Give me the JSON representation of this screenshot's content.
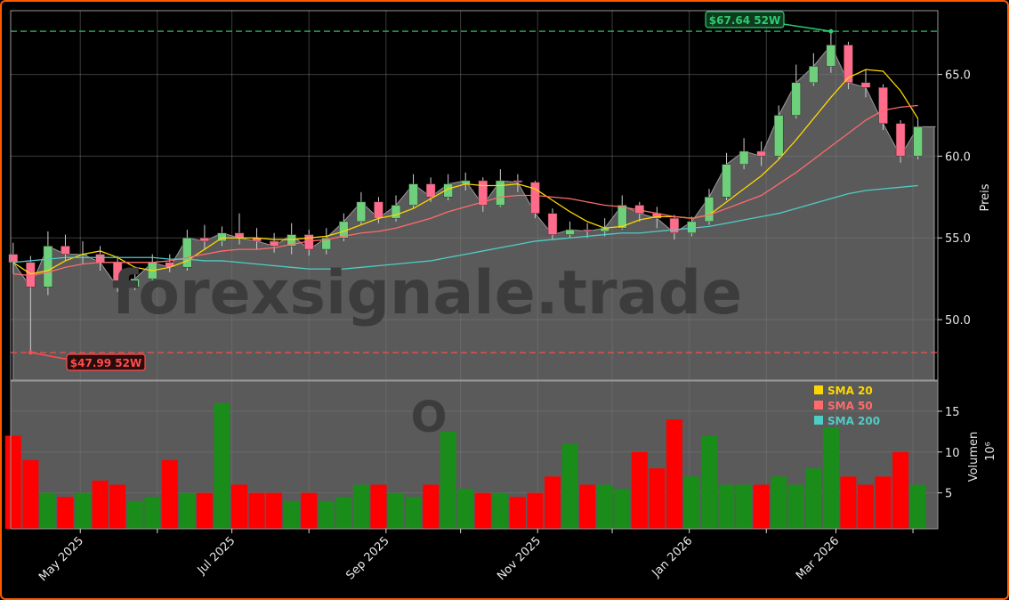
{
  "chart_data": {
    "type": "candlestick",
    "ticker_watermark": "O",
    "watermark": "forexsignale.trade",
    "price_axis": {
      "label": "Preis",
      "ticks": [
        50.0,
        55.0,
        60.0,
        65.0
      ],
      "tick_labels": [
        "50.0",
        "55.0",
        "60.0",
        "65.0"
      ],
      "ylim": [
        46.3,
        68.9
      ]
    },
    "volume_axis": {
      "label": "Volumen",
      "scale_label": "10⁶",
      "ticks": [
        5,
        10,
        15
      ],
      "tick_labels": [
        "5",
        "10",
        "15"
      ],
      "ylim": [
        0.6,
        18.7
      ]
    },
    "x_axis": {
      "tick_labels": [
        "May 2025",
        "Jul 2025",
        "Sep 2025",
        "Nov 2025",
        "Jan 2026",
        "Mar 2026"
      ],
      "tick_dates": [
        "2025-05-01",
        "2025-07-01",
        "2025-09-01",
        "2025-11-01",
        "2026-01-01",
        "2026-03-01"
      ],
      "minor_tick_dates": [
        "2025-06-01",
        "2025-08-01",
        "2025-10-01",
        "2025-12-01",
        "2026-02-01",
        "2026-04-01"
      ],
      "xlim": [
        "2025-04-03",
        "2026-04-11"
      ]
    },
    "grid": true,
    "high_52w": {
      "value": 67.64,
      "label": "$67.64 52W",
      "date": "2026-02-27",
      "color": "#2ecc71"
    },
    "low_52w": {
      "value": 47.99,
      "label": "$47.99 52W",
      "date": "2025-04-11",
      "color": "#ff4d4d"
    },
    "legend": {
      "placement": "top-right of volume panel",
      "items": [
        {
          "label": "SMA 20",
          "color": "#ffd700"
        },
        {
          "label": "SMA 50",
          "color": "#ff6b6b"
        },
        {
          "label": "SMA 200",
          "color": "#4ecdc4"
        }
      ]
    },
    "colors": {
      "up_candle": "#6fd07c",
      "down_candle": "#ff6b8a",
      "up_volume": "#1a8c1a",
      "down_volume": "#ff0000",
      "area_fill": "#5a5a5a",
      "background": "#000000",
      "frame": "#ff5a00"
    },
    "dates": [
      "2025-04-04",
      "2025-04-11",
      "2025-04-18",
      "2025-04-25",
      "2025-05-02",
      "2025-05-09",
      "2025-05-16",
      "2025-05-23",
      "2025-05-30",
      "2025-06-06",
      "2025-06-13",
      "2025-06-20",
      "2025-06-27",
      "2025-07-04",
      "2025-07-11",
      "2025-07-18",
      "2025-07-25",
      "2025-08-01",
      "2025-08-08",
      "2025-08-15",
      "2025-08-22",
      "2025-08-29",
      "2025-09-05",
      "2025-09-12",
      "2025-09-19",
      "2025-09-26",
      "2025-10-03",
      "2025-10-10",
      "2025-10-17",
      "2025-10-24",
      "2025-10-31",
      "2025-11-07",
      "2025-11-14",
      "2025-11-21",
      "2025-11-28",
      "2025-12-05",
      "2025-12-12",
      "2025-12-19",
      "2025-12-26",
      "2026-01-02",
      "2026-01-09",
      "2026-01-16",
      "2026-01-23",
      "2026-01-30",
      "2026-02-06",
      "2026-02-13",
      "2026-02-20",
      "2026-02-27",
      "2026-03-06",
      "2026-03-13",
      "2026-03-20",
      "2026-03-27",
      "2026-04-03"
    ],
    "ohlc": [
      [
        54.0,
        54.7,
        52.8,
        53.5
      ],
      [
        53.5,
        53.9,
        47.99,
        52.0
      ],
      [
        52.0,
        55.4,
        51.5,
        54.5
      ],
      [
        54.5,
        55.2,
        53.6,
        54.0
      ],
      [
        54.0,
        54.8,
        53.4,
        54.0
      ],
      [
        54.0,
        54.5,
        53.0,
        53.5
      ],
      [
        53.5,
        53.9,
        51.7,
        52.0
      ],
      [
        52.0,
        53.2,
        51.8,
        52.5
      ],
      [
        52.5,
        54.0,
        52.2,
        53.5
      ],
      [
        53.5,
        54.0,
        52.9,
        53.2
      ],
      [
        53.2,
        55.5,
        53.0,
        55.0
      ],
      [
        55.0,
        55.8,
        54.3,
        54.8
      ],
      [
        54.8,
        55.7,
        54.5,
        55.3
      ],
      [
        55.3,
        56.5,
        54.6,
        55.0
      ],
      [
        55.0,
        55.6,
        54.3,
        54.8
      ],
      [
        54.8,
        55.3,
        54.1,
        54.5
      ],
      [
        54.5,
        55.9,
        54.0,
        55.2
      ],
      [
        55.2,
        55.5,
        53.9,
        54.3
      ],
      [
        54.3,
        55.6,
        54.0,
        55.0
      ],
      [
        55.0,
        56.5,
        54.8,
        56.0
      ],
      [
        56.0,
        57.8,
        55.8,
        57.2
      ],
      [
        57.2,
        57.5,
        55.9,
        56.2
      ],
      [
        56.2,
        57.6,
        56.0,
        57.0
      ],
      [
        57.0,
        58.9,
        56.8,
        58.3
      ],
      [
        58.3,
        58.7,
        57.2,
        57.5
      ],
      [
        57.5,
        58.9,
        57.3,
        58.3
      ],
      [
        58.3,
        59.0,
        57.9,
        58.5
      ],
      [
        58.5,
        58.7,
        56.6,
        57.0
      ],
      [
        57.0,
        59.2,
        56.9,
        58.5
      ],
      [
        58.5,
        58.9,
        57.8,
        58.4
      ],
      [
        58.4,
        58.5,
        56.2,
        56.5
      ],
      [
        56.5,
        56.8,
        54.9,
        55.2
      ],
      [
        55.2,
        56.0,
        55.0,
        55.5
      ],
      [
        55.5,
        55.9,
        55.0,
        55.4
      ],
      [
        55.4,
        56.2,
        55.1,
        55.6
      ],
      [
        55.6,
        57.6,
        55.5,
        57.0
      ],
      [
        57.0,
        57.2,
        56.0,
        56.5
      ],
      [
        56.5,
        56.9,
        55.6,
        56.2
      ],
      [
        56.2,
        56.4,
        54.9,
        55.3
      ],
      [
        55.3,
        56.3,
        55.1,
        56.0
      ],
      [
        56.0,
        58.0,
        55.8,
        57.5
      ],
      [
        57.5,
        60.2,
        57.3,
        59.5
      ],
      [
        59.5,
        61.1,
        59.2,
        60.3
      ],
      [
        60.3,
        60.9,
        59.4,
        60.0
      ],
      [
        60.0,
        63.1,
        59.8,
        62.5
      ],
      [
        62.5,
        65.6,
        62.3,
        64.5
      ],
      [
        64.5,
        66.3,
        64.3,
        65.5
      ],
      [
        65.5,
        67.64,
        65.1,
        66.8
      ],
      [
        66.8,
        67.0,
        64.1,
        64.5
      ],
      [
        64.5,
        65.3,
        63.6,
        64.2
      ],
      [
        64.2,
        64.4,
        61.6,
        62.0
      ],
      [
        62.0,
        62.2,
        59.6,
        60.0
      ],
      [
        60.0,
        62.3,
        59.8,
        61.8
      ]
    ],
    "volume_millions": [
      12,
      9,
      5,
      4.5,
      5,
      6.5,
      6,
      4,
      4.5,
      9,
      5,
      5,
      16,
      6,
      5,
      5,
      4,
      5,
      4,
      4.5,
      6,
      6,
      5,
      4.5,
      6,
      12.5,
      5.5,
      5,
      5,
      4.5,
      5,
      7,
      11,
      6,
      6,
      5.5,
      10,
      8,
      14,
      7,
      12,
      6,
      6,
      6,
      7,
      6,
      8,
      13,
      7,
      6,
      7,
      10,
      6
    ],
    "series": [
      {
        "name": "SMA 20",
        "values": [
          53.5,
          52.8,
          53.0,
          53.6,
          54.0,
          54.2,
          53.8,
          53.2,
          53.0,
          53.2,
          53.6,
          54.3,
          55.0,
          55.0,
          55.0,
          54.9,
          54.9,
          55.0,
          55.1,
          55.4,
          55.8,
          56.2,
          56.4,
          56.8,
          57.4,
          58.0,
          58.3,
          58.2,
          58.2,
          58.3,
          58.0,
          57.3,
          56.6,
          56.0,
          55.6,
          55.7,
          56.1,
          56.3,
          56.3,
          56.2,
          56.4,
          57.2,
          58.0,
          58.8,
          59.8,
          61.0,
          62.3,
          63.6,
          64.8,
          65.3,
          65.2,
          64.0,
          62.3
        ]
      },
      {
        "name": "SMA 50",
        "values": [
          52.8,
          52.7,
          52.9,
          53.2,
          53.4,
          53.5,
          53.5,
          53.5,
          53.5,
          53.6,
          53.8,
          54.0,
          54.2,
          54.3,
          54.3,
          54.4,
          54.6,
          54.8,
          54.9,
          55.1,
          55.3,
          55.4,
          55.6,
          55.9,
          56.2,
          56.6,
          56.9,
          57.2,
          57.5,
          57.6,
          57.6,
          57.5,
          57.4,
          57.2,
          57.0,
          56.9,
          56.7,
          56.5,
          56.3,
          56.2,
          56.4,
          56.8,
          57.2,
          57.6,
          58.3,
          59.0,
          59.8,
          60.6,
          61.4,
          62.2,
          62.8,
          63.0,
          63.1
        ]
      },
      {
        "name": "SMA 200",
        "values": [
          53.5,
          53.6,
          53.7,
          53.8,
          53.8,
          53.8,
          53.8,
          53.8,
          53.8,
          53.7,
          53.7,
          53.6,
          53.6,
          53.5,
          53.4,
          53.3,
          53.2,
          53.1,
          53.1,
          53.1,
          53.2,
          53.3,
          53.4,
          53.5,
          53.6,
          53.8,
          54.0,
          54.2,
          54.4,
          54.6,
          54.8,
          54.9,
          55.0,
          55.1,
          55.2,
          55.3,
          55.3,
          55.4,
          55.5,
          55.6,
          55.7,
          55.9,
          56.1,
          56.3,
          56.5,
          56.8,
          57.1,
          57.4,
          57.7,
          57.9,
          58.0,
          58.1,
          58.2
        ]
      }
    ]
  }
}
